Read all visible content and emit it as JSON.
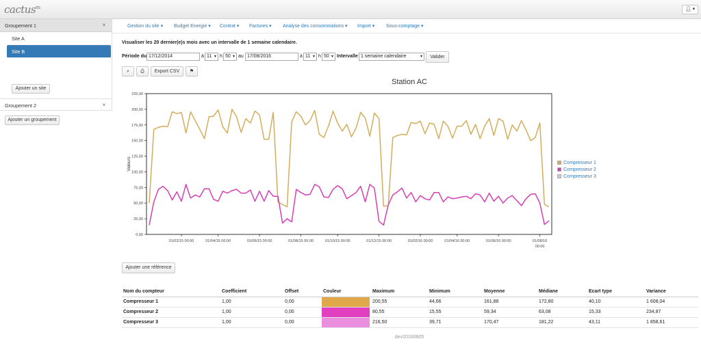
{
  "app": {
    "logo_text": "cactus",
    "logo_suffix": "es",
    "user_icon": "user-icon"
  },
  "sidebar": {
    "group1": {
      "label": "Groupement 1"
    },
    "sites": [
      {
        "label": "Site A"
      },
      {
        "label": "Site B"
      }
    ],
    "add_site": "Ajouter un site",
    "group2": {
      "label": "Groupement 2"
    },
    "add_group": "Ajouter un groupement"
  },
  "nav": {
    "items": [
      {
        "label": "Gestion du site ▾"
      },
      {
        "label": "Budget Energie ▾"
      },
      {
        "label": "Contrat ▾"
      },
      {
        "label": "Factures ▾"
      },
      {
        "label": "Analyse des consommations ▾"
      },
      {
        "label": "Import ▾"
      },
      {
        "label": "Sous-comptage ▾"
      }
    ]
  },
  "intro": "Visualiser les 20 dernier(e)s mois avec un intervalle de 1 semaine calendaire.",
  "period": {
    "label": "Période du",
    "start_date": "17/12/2014",
    "start_hour": "11",
    "start_min": "50",
    "h1": "h",
    "a1": "à",
    "au": "au",
    "end_date": "17/08/2016",
    "end_hour": "11",
    "end_min": "50",
    "a2": "à",
    "h2": "h",
    "interval_label": "Intervalle :",
    "interval_value": "1 semaine calendaire",
    "submit": "Valider"
  },
  "toolbar": {
    "zoom_icon": "zoom-icon",
    "print_icon": "print-icon",
    "export_label": "Export CSV",
    "flag_icon": "flag-icon"
  },
  "add_reference": "Ajouter une référence",
  "chart_data": {
    "type": "line",
    "title": "Station AC",
    "ylabel": "Valeurs",
    "ylim": [
      0,
      225
    ],
    "yticks": [
      "0,00",
      "25,00",
      "50,00",
      "75,00",
      "100,00",
      "125,00",
      "150,00",
      "175,00",
      "200,00",
      "225,00"
    ],
    "x_ticks": [
      {
        "label": "01/02/15 00:00",
        "index": 7
      },
      {
        "label": "01/04/15 00:00",
        "index": 15
      },
      {
        "label": "01/06/15 00:00",
        "index": 24
      },
      {
        "label": "01/08/15 00:00",
        "index": 33
      },
      {
        "label": "01/10/15 00:00",
        "index": 41
      },
      {
        "label": "01/12/15 00:00",
        "index": 50
      },
      {
        "label": "01/02/16 00:00",
        "index": 59
      },
      {
        "label": "01/04/16 00:00",
        "index": 67
      },
      {
        "label": "01/06/16 00:00",
        "index": 76
      },
      {
        "label": "01/08/16 00:00",
        "index": 85
      }
    ],
    "series": [
      {
        "name": "Compresseur 1",
        "color": "#d4ad5a",
        "values": [
          50,
          168,
          171,
          173,
          172,
          196,
          193,
          195,
          162,
          196,
          182,
          168,
          153,
          188,
          189,
          199,
          172,
          162,
          200,
          188,
          163,
          185,
          178,
          197,
          191,
          152,
          152,
          195,
          52,
          48,
          44,
          180,
          196,
          189,
          175,
          182,
          198,
          160,
          155,
          173,
          197,
          178,
          165,
          176,
          156,
          170,
          195,
          186,
          157,
          194,
          185,
          45,
          46,
          155,
          158,
          160,
          159,
          179,
          177,
          181,
          161,
          178,
          176,
          153,
          181,
          173,
          154,
          173,
          173,
          182,
          160,
          176,
          153,
          173,
          185,
          158,
          185,
          181,
          152,
          175,
          165,
          182,
          167,
          150,
          155,
          178,
          48,
          44
        ]
      },
      {
        "name": "Compresseur 2",
        "color": "#d63fb3",
        "values": [
          15,
          52,
          72,
          77,
          70,
          55,
          68,
          53,
          80,
          58,
          63,
          60,
          73,
          73,
          56,
          53,
          69,
          66,
          70,
          72,
          66,
          66,
          71,
          53,
          69,
          53,
          70,
          61,
          61,
          18,
          25,
          20,
          72,
          67,
          63,
          64,
          80,
          76,
          60,
          59,
          72,
          78,
          73,
          57,
          62,
          67,
          77,
          52,
          80,
          74,
          21,
          15,
          47,
          63,
          68,
          74,
          58,
          67,
          52,
          62,
          57,
          55,
          67,
          67,
          52,
          60,
          57,
          58,
          60,
          61,
          57,
          65,
          63,
          52,
          66,
          53,
          61,
          50,
          58,
          62,
          54,
          46,
          57,
          64,
          65,
          50,
          16,
          22
        ]
      },
      {
        "name": "Compresseur 3",
        "color": "#cccccc",
        "values": []
      }
    ]
  },
  "table": {
    "headers": [
      "Nom du compteur",
      "Coefficient",
      "Offset",
      "Couleur",
      "Maximum",
      "Minimum",
      "Moyenne",
      "Médiane",
      "Ecart type",
      "Variance"
    ],
    "rows": [
      {
        "name": "Compresseur 1",
        "coef": "1,00",
        "offset": "0,00",
        "color": "#e0a84b",
        "max": "200,55",
        "min": "44,66",
        "avg": "161,88",
        "med": "172,80",
        "std": "40,10",
        "var": "1 608,04"
      },
      {
        "name": "Compresseur 2",
        "coef": "1,00",
        "offset": "0,00",
        "color": "#e23fc0",
        "max": "80,55",
        "min": "15,55",
        "avg": "59,34",
        "med": "63,08",
        "std": "15,33",
        "var": "234,87"
      },
      {
        "name": "Compresseur 3",
        "coef": "1,00",
        "offset": "0,00",
        "color": "#ea8fe0",
        "max": "216,50",
        "min": "39,71",
        "avg": "170,47",
        "med": "181,22",
        "std": "43,11",
        "var": "1 858,61"
      }
    ]
  },
  "footer": "dev20160805"
}
